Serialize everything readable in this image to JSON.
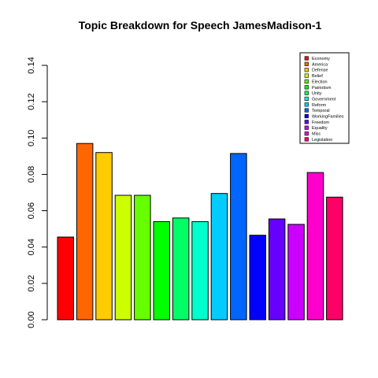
{
  "chart_data": {
    "type": "bar",
    "title": "Topic Breakdown for Speech JamesMadison-1",
    "xlabel": "",
    "ylabel": "",
    "ylim": [
      0,
      0.14
    ],
    "yticks": [
      "0.00",
      "0.02",
      "0.04",
      "0.06",
      "0.08",
      "0.10",
      "0.12",
      "0.14"
    ],
    "categories": [
      "Economy",
      "America",
      "Defense",
      "Belief",
      "Election",
      "Patriotism",
      "Unity",
      "Government",
      "Reform",
      "Temporal",
      "WorkingFamilies",
      "Freedom",
      "Equality",
      "Misc",
      "Legislation"
    ],
    "values": [
      0.0455,
      0.097,
      0.092,
      0.0685,
      0.0685,
      0.054,
      0.056,
      0.054,
      0.0695,
      0.0915,
      0.0465,
      0.0555,
      0.0525,
      0.081,
      0.0675
    ],
    "colors": [
      "#FF0000",
      "#FF6600",
      "#FFCC00",
      "#CCFF00",
      "#66FF00",
      "#00FF00",
      "#00FF66",
      "#00FFCC",
      "#00CCFF",
      "#0066FF",
      "#0000FF",
      "#6600FF",
      "#CC00FF",
      "#FF00CC",
      "#FF0066"
    ],
    "legend_position": "top-right",
    "grid": false
  }
}
